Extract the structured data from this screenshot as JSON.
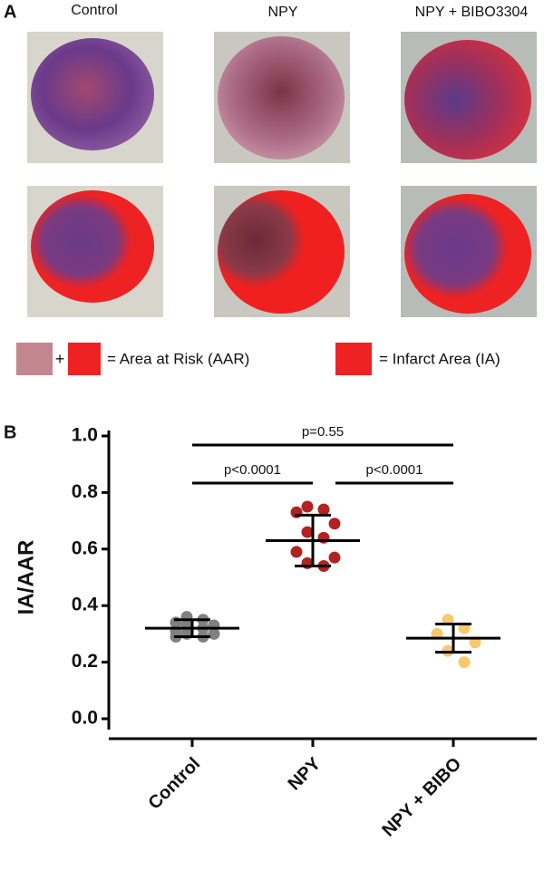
{
  "panel_a": {
    "label": "A",
    "columns": [
      "Control",
      "NPY",
      "NPY + BIBO3304"
    ],
    "legend": {
      "plus": "+",
      "aar": "= Area at Risk (AAR)",
      "ia": "= Infarct Area (IA)"
    }
  },
  "panel_b": {
    "label": "B"
  },
  "chart_data": {
    "type": "dot",
    "ylabel": "IA/AAR",
    "categories": [
      "Control",
      "NPY",
      "NPY + BIBO"
    ],
    "colors": [
      "#808080",
      "#b22222",
      "#f7c96b"
    ],
    "points": [
      [
        0.36,
        0.35,
        0.34,
        0.33,
        0.33,
        0.32,
        0.31,
        0.3,
        0.3,
        0.29,
        0.29
      ],
      [
        0.75,
        0.74,
        0.73,
        0.69,
        0.66,
        0.64,
        0.59,
        0.57,
        0.55,
        0.54
      ],
      [
        0.35,
        0.32,
        0.3,
        0.27,
        0.24,
        0.2
      ]
    ],
    "means": [
      0.32,
      0.63,
      0.285
    ],
    "errors": [
      0.03,
      0.09,
      0.05
    ],
    "ylim": [
      0,
      1
    ],
    "yticks": [
      {
        "value": 0,
        "label": "0.0"
      },
      0.2,
      0.4,
      0.6,
      0.8,
      {
        "value": 1,
        "label": "1.0"
      }
    ],
    "comparisons": [
      {
        "label": "p=0.55",
        "between": [
          0,
          2
        ]
      },
      {
        "label": "p<0.0001",
        "between": [
          0,
          1
        ]
      },
      {
        "label": "p<0.0001",
        "between": [
          1,
          2
        ]
      }
    ]
  }
}
